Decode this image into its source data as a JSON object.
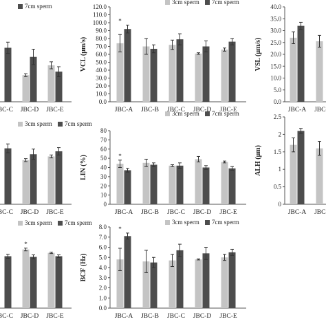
{
  "figure": {
    "legend_labels": [
      "3cm sperm",
      "7cm sperm"
    ],
    "colors": {
      "3cm": "#c4c4c4",
      "7cm": "#4d4d4d",
      "axis": "#555555",
      "errbar": "#333333"
    }
  },
  "chart_data": [
    {
      "id": "top-left",
      "type": "bar",
      "ylabel": "",
      "categories": [
        "JBC-C",
        "JBC-D",
        "JBC-E"
      ],
      "yticks": [],
      "ylim": [
        0,
        1.0
      ],
      "series": [
        {
          "name": "3cm sperm",
          "values": [
            null,
            0.38,
            0.52
          ],
          "errors": [
            null,
            0.02,
            0.05
          ]
        },
        {
          "name": "7cm sperm",
          "values": [
            0.77,
            0.64,
            0.43
          ],
          "errors": [
            0.08,
            0.11,
            0.07
          ]
        }
      ],
      "significance": []
    },
    {
      "id": "VCL",
      "type": "bar",
      "ylabel": "VCL (μm/s)",
      "categories": [
        "JBC-A",
        "JBC-B",
        "JBC-C",
        "JBC-D",
        "JBC-E"
      ],
      "yticks": [
        "0.0",
        "10.0",
        "20.0",
        "30.0",
        "40.0",
        "50.0",
        "60.0",
        "70.0",
        "80.0",
        "90.0",
        "100.0",
        "110.0",
        "120.0"
      ],
      "ylim": [
        0,
        120
      ],
      "series": [
        {
          "name": "3cm sperm",
          "values": [
            74,
            70,
            72,
            61,
            66
          ],
          "errors": [
            11,
            10,
            6,
            1,
            2
          ]
        },
        {
          "name": "7cm sperm",
          "values": [
            92,
            67,
            79,
            70,
            76
          ],
          "errors": [
            5,
            5,
            7,
            7,
            4
          ]
        }
      ],
      "significance": [
        "*",
        "",
        "",
        "",
        ""
      ]
    },
    {
      "id": "VSL",
      "type": "bar",
      "ylabel": "VSL (μm/s)",
      "categories": [
        "JBC-A",
        "JBC-B"
      ],
      "yticks": [
        "0.0",
        "5.0",
        "10.0",
        "15.0",
        "20.0",
        "25.0",
        "30.0",
        "35.0",
        "40.0"
      ],
      "ylim": [
        0,
        40
      ],
      "series": [
        {
          "name": "3cm sperm",
          "values": [
            27,
            25.5
          ],
          "errors": [
            2.5,
            2.5
          ]
        },
        {
          "name": "7cm sperm",
          "values": [
            32,
            null
          ],
          "errors": [
            1.5,
            null
          ]
        }
      ],
      "significance": [
        "",
        ""
      ]
    },
    {
      "id": "mid-left",
      "type": "bar",
      "ylabel": "",
      "categories": [
        "JBC-C",
        "JBC-D",
        "JBC-E"
      ],
      "yticks": [],
      "ylim": [
        0,
        1.0
      ],
      "series": [
        {
          "name": "3cm sperm",
          "values": [
            null,
            0.6,
            0.65
          ],
          "errors": [
            null,
            0.02,
            0.02
          ]
        },
        {
          "name": "7cm sperm",
          "values": [
            0.76,
            0.68,
            0.72
          ],
          "errors": [
            0.06,
            0.07,
            0.05
          ]
        }
      ],
      "significance": []
    },
    {
      "id": "LIN",
      "type": "bar",
      "ylabel": "LIN (%)",
      "categories": [
        "JBC-A",
        "JBC-B",
        "JBC-C",
        "JBC-D",
        "JBC-E"
      ],
      "yticks": [
        "0",
        "10",
        "20",
        "30",
        "40",
        "50",
        "60",
        "70",
        "80"
      ],
      "ylim": [
        0,
        80
      ],
      "series": [
        {
          "name": "3cm sperm",
          "values": [
            44,
            45,
            42,
            49,
            46
          ],
          "errors": [
            4,
            4,
            1,
            3,
            1
          ]
        },
        {
          "name": "7cm sperm",
          "values": [
            37,
            43,
            42,
            40,
            39
          ],
          "errors": [
            2,
            2,
            3,
            2,
            2
          ]
        }
      ],
      "significance": [
        "*",
        "",
        "",
        "",
        ""
      ]
    },
    {
      "id": "ALH",
      "type": "bar",
      "ylabel": "ALH (μm)",
      "categories": [
        "JBC-A",
        "JBC-B"
      ],
      "yticks": [
        "0",
        "0.5",
        "1",
        "1.5",
        "2",
        "2.5"
      ],
      "ylim": [
        0,
        2.5
      ],
      "series": [
        {
          "name": "3cm sperm",
          "values": [
            1.7,
            1.6
          ],
          "errors": [
            0.2,
            0.2
          ]
        },
        {
          "name": "7cm sperm",
          "values": [
            2.1,
            null
          ],
          "errors": [
            0.07,
            null
          ]
        }
      ],
      "significance": [
        "",
        ""
      ]
    },
    {
      "id": "bottom-left",
      "type": "bar",
      "ylabel": "",
      "categories": [
        "JBC-C",
        "JBC-D",
        "JBC-E"
      ],
      "yticks": [],
      "ylim": [
        0,
        1.0
      ],
      "series": [
        {
          "name": "3cm sperm",
          "values": [
            null,
            0.87,
            0.82
          ],
          "errors": [
            null,
            0.02,
            0.01
          ]
        },
        {
          "name": "7cm sperm",
          "values": [
            0.77,
            0.76,
            0.77
          ],
          "errors": [
            0.03,
            0.03,
            0.02
          ]
        }
      ],
      "significance": [
        "",
        "*",
        ""
      ]
    },
    {
      "id": "BCF",
      "type": "bar",
      "ylabel": "BCF (Hz)",
      "categories": [
        "JBC-A",
        "JBC-B",
        "JBC-C",
        "JBC-D",
        "JBC-E"
      ],
      "yticks": [
        "0.0",
        "1.0",
        "2.0",
        "3.0",
        "4.0",
        "5.0",
        "6.0",
        "7.0",
        "8.0"
      ],
      "ylim": [
        0,
        8
      ],
      "series": [
        {
          "name": "3cm sperm",
          "values": [
            4.8,
            4.6,
            4.7,
            4.8,
            5.0
          ],
          "errors": [
            1.1,
            1.1,
            0.6,
            0.05,
            0.3
          ]
        },
        {
          "name": "7cm sperm",
          "values": [
            7.1,
            4.5,
            5.7,
            5.4,
            5.5
          ],
          "errors": [
            0.3,
            0.5,
            0.6,
            0.6,
            0.3
          ]
        }
      ],
      "significance": [
        "*",
        "",
        "",
        "",
        ""
      ]
    }
  ]
}
